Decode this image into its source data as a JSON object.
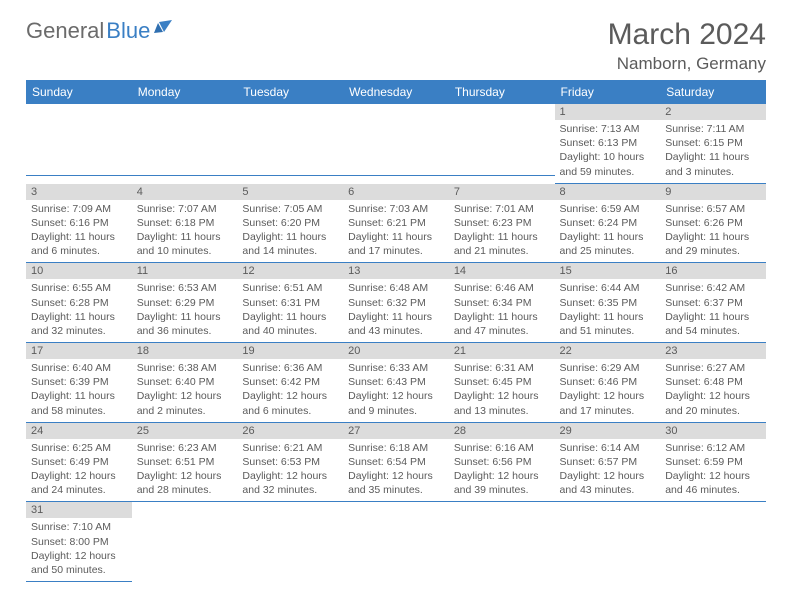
{
  "logo": {
    "text1": "General",
    "text2": "Blue"
  },
  "title": "March 2024",
  "location": "Namborn, Germany",
  "colors": {
    "header_bg": "#3a7fc4",
    "header_text": "#ffffff",
    "daynum_bg": "#dcdcdc",
    "text": "#5b5b5b",
    "row_divider": "#3a7fc4",
    "background": "#ffffff"
  },
  "day_headers": [
    "Sunday",
    "Monday",
    "Tuesday",
    "Wednesday",
    "Thursday",
    "Friday",
    "Saturday"
  ],
  "grid": [
    [
      {
        "empty": true
      },
      {
        "empty": true
      },
      {
        "empty": true
      },
      {
        "empty": true
      },
      {
        "empty": true
      },
      {
        "n": "1",
        "sr": "Sunrise: 7:13 AM",
        "ss": "Sunset: 6:13 PM",
        "d1": "Daylight: 10 hours",
        "d2": "and 59 minutes."
      },
      {
        "n": "2",
        "sr": "Sunrise: 7:11 AM",
        "ss": "Sunset: 6:15 PM",
        "d1": "Daylight: 11 hours",
        "d2": "and 3 minutes."
      }
    ],
    [
      {
        "n": "3",
        "sr": "Sunrise: 7:09 AM",
        "ss": "Sunset: 6:16 PM",
        "d1": "Daylight: 11 hours",
        "d2": "and 6 minutes."
      },
      {
        "n": "4",
        "sr": "Sunrise: 7:07 AM",
        "ss": "Sunset: 6:18 PM",
        "d1": "Daylight: 11 hours",
        "d2": "and 10 minutes."
      },
      {
        "n": "5",
        "sr": "Sunrise: 7:05 AM",
        "ss": "Sunset: 6:20 PM",
        "d1": "Daylight: 11 hours",
        "d2": "and 14 minutes."
      },
      {
        "n": "6",
        "sr": "Sunrise: 7:03 AM",
        "ss": "Sunset: 6:21 PM",
        "d1": "Daylight: 11 hours",
        "d2": "and 17 minutes."
      },
      {
        "n": "7",
        "sr": "Sunrise: 7:01 AM",
        "ss": "Sunset: 6:23 PM",
        "d1": "Daylight: 11 hours",
        "d2": "and 21 minutes."
      },
      {
        "n": "8",
        "sr": "Sunrise: 6:59 AM",
        "ss": "Sunset: 6:24 PM",
        "d1": "Daylight: 11 hours",
        "d2": "and 25 minutes."
      },
      {
        "n": "9",
        "sr": "Sunrise: 6:57 AM",
        "ss": "Sunset: 6:26 PM",
        "d1": "Daylight: 11 hours",
        "d2": "and 29 minutes."
      }
    ],
    [
      {
        "n": "10",
        "sr": "Sunrise: 6:55 AM",
        "ss": "Sunset: 6:28 PM",
        "d1": "Daylight: 11 hours",
        "d2": "and 32 minutes."
      },
      {
        "n": "11",
        "sr": "Sunrise: 6:53 AM",
        "ss": "Sunset: 6:29 PM",
        "d1": "Daylight: 11 hours",
        "d2": "and 36 minutes."
      },
      {
        "n": "12",
        "sr": "Sunrise: 6:51 AM",
        "ss": "Sunset: 6:31 PM",
        "d1": "Daylight: 11 hours",
        "d2": "and 40 minutes."
      },
      {
        "n": "13",
        "sr": "Sunrise: 6:48 AM",
        "ss": "Sunset: 6:32 PM",
        "d1": "Daylight: 11 hours",
        "d2": "and 43 minutes."
      },
      {
        "n": "14",
        "sr": "Sunrise: 6:46 AM",
        "ss": "Sunset: 6:34 PM",
        "d1": "Daylight: 11 hours",
        "d2": "and 47 minutes."
      },
      {
        "n": "15",
        "sr": "Sunrise: 6:44 AM",
        "ss": "Sunset: 6:35 PM",
        "d1": "Daylight: 11 hours",
        "d2": "and 51 minutes."
      },
      {
        "n": "16",
        "sr": "Sunrise: 6:42 AM",
        "ss": "Sunset: 6:37 PM",
        "d1": "Daylight: 11 hours",
        "d2": "and 54 minutes."
      }
    ],
    [
      {
        "n": "17",
        "sr": "Sunrise: 6:40 AM",
        "ss": "Sunset: 6:39 PM",
        "d1": "Daylight: 11 hours",
        "d2": "and 58 minutes."
      },
      {
        "n": "18",
        "sr": "Sunrise: 6:38 AM",
        "ss": "Sunset: 6:40 PM",
        "d1": "Daylight: 12 hours",
        "d2": "and 2 minutes."
      },
      {
        "n": "19",
        "sr": "Sunrise: 6:36 AM",
        "ss": "Sunset: 6:42 PM",
        "d1": "Daylight: 12 hours",
        "d2": "and 6 minutes."
      },
      {
        "n": "20",
        "sr": "Sunrise: 6:33 AM",
        "ss": "Sunset: 6:43 PM",
        "d1": "Daylight: 12 hours",
        "d2": "and 9 minutes."
      },
      {
        "n": "21",
        "sr": "Sunrise: 6:31 AM",
        "ss": "Sunset: 6:45 PM",
        "d1": "Daylight: 12 hours",
        "d2": "and 13 minutes."
      },
      {
        "n": "22",
        "sr": "Sunrise: 6:29 AM",
        "ss": "Sunset: 6:46 PM",
        "d1": "Daylight: 12 hours",
        "d2": "and 17 minutes."
      },
      {
        "n": "23",
        "sr": "Sunrise: 6:27 AM",
        "ss": "Sunset: 6:48 PM",
        "d1": "Daylight: 12 hours",
        "d2": "and 20 minutes."
      }
    ],
    [
      {
        "n": "24",
        "sr": "Sunrise: 6:25 AM",
        "ss": "Sunset: 6:49 PM",
        "d1": "Daylight: 12 hours",
        "d2": "and 24 minutes."
      },
      {
        "n": "25",
        "sr": "Sunrise: 6:23 AM",
        "ss": "Sunset: 6:51 PM",
        "d1": "Daylight: 12 hours",
        "d2": "and 28 minutes."
      },
      {
        "n": "26",
        "sr": "Sunrise: 6:21 AM",
        "ss": "Sunset: 6:53 PM",
        "d1": "Daylight: 12 hours",
        "d2": "and 32 minutes."
      },
      {
        "n": "27",
        "sr": "Sunrise: 6:18 AM",
        "ss": "Sunset: 6:54 PM",
        "d1": "Daylight: 12 hours",
        "d2": "and 35 minutes."
      },
      {
        "n": "28",
        "sr": "Sunrise: 6:16 AM",
        "ss": "Sunset: 6:56 PM",
        "d1": "Daylight: 12 hours",
        "d2": "and 39 minutes."
      },
      {
        "n": "29",
        "sr": "Sunrise: 6:14 AM",
        "ss": "Sunset: 6:57 PM",
        "d1": "Daylight: 12 hours",
        "d2": "and 43 minutes."
      },
      {
        "n": "30",
        "sr": "Sunrise: 6:12 AM",
        "ss": "Sunset: 6:59 PM",
        "d1": "Daylight: 12 hours",
        "d2": "and 46 minutes."
      }
    ],
    [
      {
        "n": "31",
        "sr": "Sunrise: 7:10 AM",
        "ss": "Sunset: 8:00 PM",
        "d1": "Daylight: 12 hours",
        "d2": "and 50 minutes."
      },
      {
        "empty": true,
        "noborder": true
      },
      {
        "empty": true,
        "noborder": true
      },
      {
        "empty": true,
        "noborder": true
      },
      {
        "empty": true,
        "noborder": true
      },
      {
        "empty": true,
        "noborder": true
      },
      {
        "empty": true,
        "noborder": true
      }
    ]
  ]
}
